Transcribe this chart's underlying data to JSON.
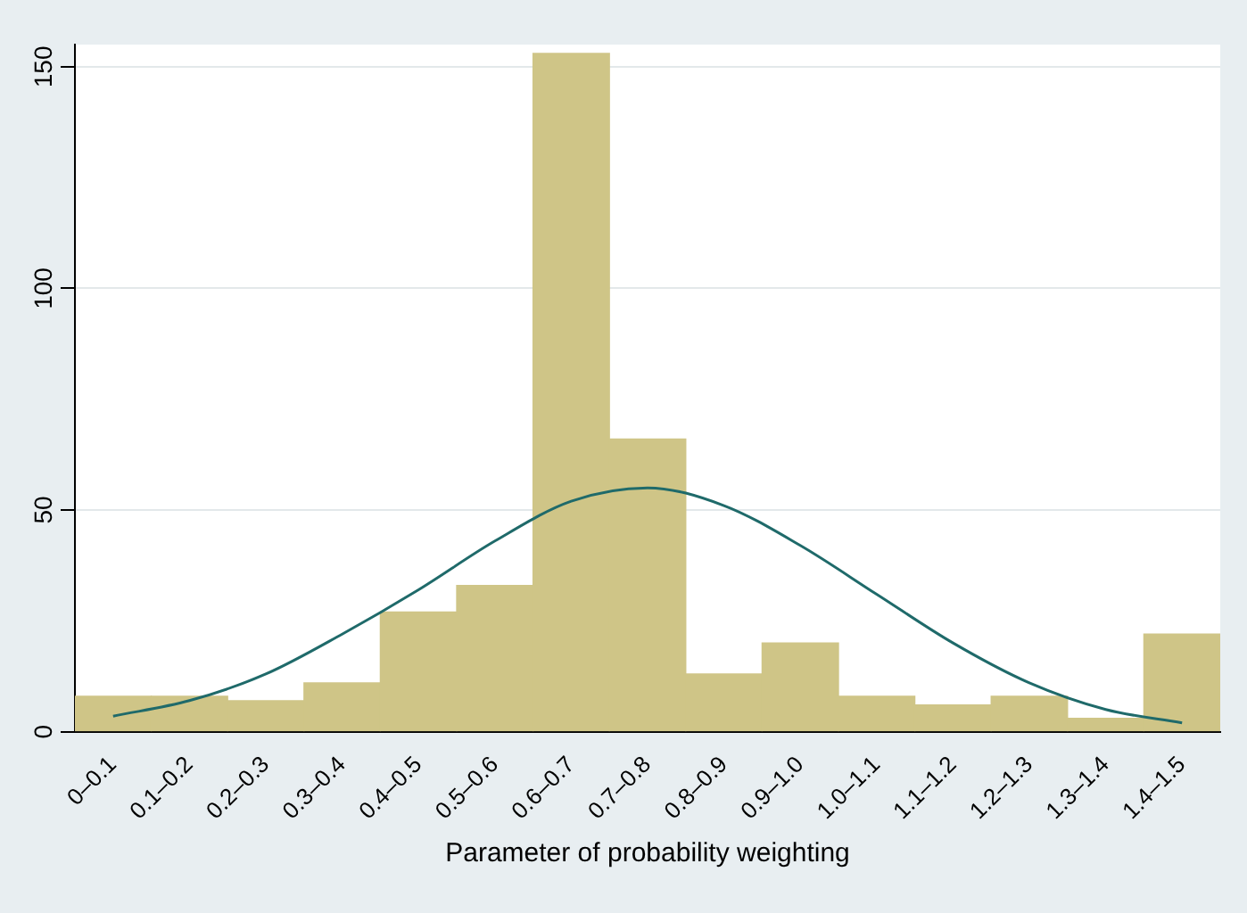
{
  "chart_data": {
    "type": "bar",
    "xlabel": "Parameter of probability weighting",
    "categories": [
      "0–0.1",
      "0.1–0.2",
      "0.2–0.3",
      "0.3–0.4",
      "0.4–0.5",
      "0.5–0.6",
      "0.6–0.7",
      "0.7–0.8",
      "0.8–0.9",
      "0.9–1.0",
      "1.0–1.1",
      "1.1–1.2",
      "1.2–1.3",
      "1.3–1.4",
      "1.4–1.5"
    ],
    "series": [
      {
        "color": "#cfc587",
        "values": [
          8,
          8,
          7,
          11,
          27,
          33,
          153,
          66,
          13,
          20,
          8,
          6,
          8,
          3,
          22
        ]
      },
      {
        "type": "line",
        "color": "#1f6a6a",
        "values": [
          3.5,
          7,
          13,
          22,
          32,
          43,
          52,
          55,
          51,
          42,
          31,
          20,
          11,
          5,
          2
        ]
      }
    ],
    "ylim": [
      0,
      155
    ],
    "yticks": [
      0,
      50,
      100,
      150
    ],
    "grid": "y",
    "legend": false
  }
}
